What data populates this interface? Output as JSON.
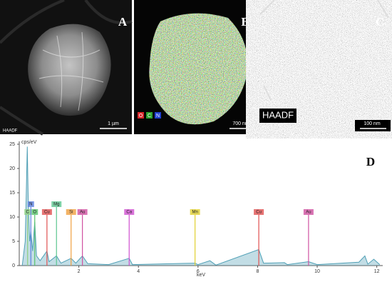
{
  "panels": [
    {
      "label": "A",
      "detector": "HAADF",
      "scale_bar": "1 µm"
    },
    {
      "label": "B",
      "scale_bar": "700 nm",
      "legend": [
        {
          "text": "O",
          "color": "#d8262a"
        },
        {
          "text": "C",
          "color": "#2ca02c"
        },
        {
          "text": "N",
          "color": "#1f3fd0"
        }
      ]
    },
    {
      "label": "C",
      "detector": "HAADF",
      "scale_bar": "100 nm"
    }
  ],
  "chart_data": {
    "type": "line",
    "label": "D",
    "y_label": "cps/eV",
    "x_label": "keV",
    "x": [
      0.1,
      0.2,
      0.27,
      0.3,
      0.35,
      0.39,
      0.45,
      0.52,
      0.58,
      0.7,
      0.93,
      1.0,
      1.25,
      1.4,
      1.74,
      1.9,
      2.12,
      2.3,
      3.0,
      3.69,
      3.8,
      5.9,
      6.0,
      6.4,
      6.6,
      8.04,
      8.2,
      8.9,
      9.0,
      9.71,
      10.0,
      11.4,
      11.6,
      11.7,
      11.9,
      12.1
    ],
    "values": [
      0,
      5,
      24.5,
      14,
      5,
      7,
      3,
      9,
      2,
      1,
      3,
      0.8,
      2,
      0.5,
      1.5,
      0.5,
      2,
      0.4,
      0.2,
      1.5,
      0.2,
      0.5,
      0.2,
      1,
      0.1,
      3.3,
      0.5,
      0.6,
      0.2,
      0.8,
      0.2,
      0.7,
      2,
      0.3,
      1.3,
      0.2
    ],
    "color": "#4f9fb5",
    "xlim": [
      0,
      12.2
    ],
    "ylim": [
      0,
      25
    ],
    "xticks": [
      2,
      4,
      6,
      8,
      10,
      12
    ],
    "yticks": [
      0,
      5,
      10,
      15,
      20,
      25
    ],
    "markers": [
      {
        "label": "C",
        "x": 0.28,
        "color": "#8fcf7f"
      },
      {
        "label": "N",
        "x": 0.39,
        "color": "#5a7fe0"
      },
      {
        "label": "O",
        "x": 0.52,
        "color": "#56c36a"
      },
      {
        "label": "Cu",
        "x": 0.93,
        "color": "#e05050"
      },
      {
        "label": "Mg",
        "x": 1.25,
        "color": "#5cc68f"
      },
      {
        "label": "Si",
        "x": 1.74,
        "color": "#f0a040"
      },
      {
        "label": "Au",
        "x": 2.12,
        "color": "#d050a0"
      },
      {
        "label": "Ca",
        "x": 3.69,
        "color": "#d050d0"
      },
      {
        "label": "Mn",
        "x": 5.9,
        "color": "#e0d030"
      },
      {
        "label": "Cu",
        "x": 8.04,
        "color": "#e05050"
      },
      {
        "label": "Au",
        "x": 9.71,
        "color": "#d050a0"
      }
    ]
  }
}
